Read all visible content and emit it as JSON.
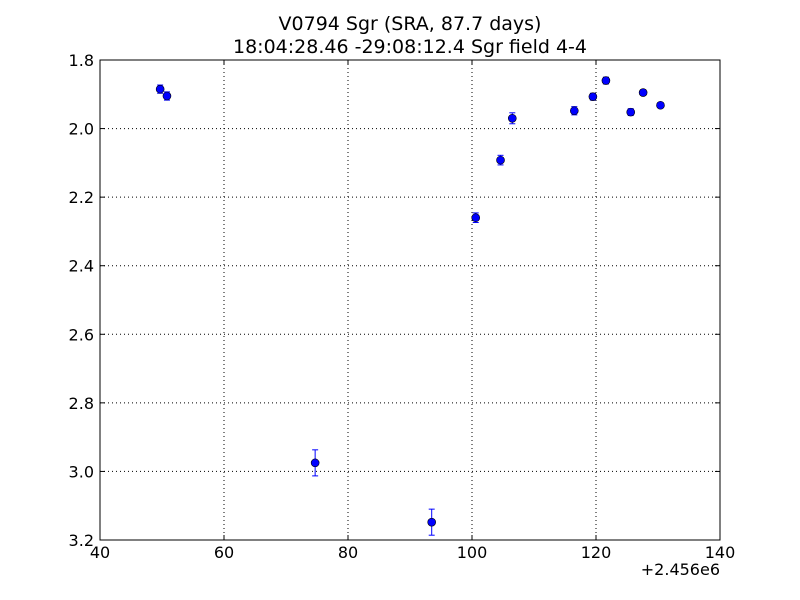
{
  "chart_data": {
    "type": "scatter",
    "title": "V0794 Sgr (SRA, 87.7 days)",
    "subtitle": "18:04:28.46 -29:08:12.4 Sgr field 4-4",
    "xlabel": "",
    "ylabel": "",
    "x_offset_label": "+2.456e6",
    "xlim": [
      40,
      140
    ],
    "ylim": [
      3.2,
      1.8
    ],
    "y_inverted": true,
    "grid": true,
    "x_ticks": [
      40,
      60,
      80,
      100,
      120,
      140
    ],
    "x_tick_labels": [
      "40",
      "60",
      "80",
      "100",
      "120",
      "140"
    ],
    "y_ticks": [
      1.8,
      2.0,
      2.2,
      2.4,
      2.6,
      2.8,
      3.0,
      3.2
    ],
    "y_tick_labels": [
      "1.8",
      "2.0",
      "2.2",
      "2.4",
      "2.6",
      "2.8",
      "3.0",
      "3.2"
    ],
    "marker_color": "#0000ff",
    "errorbar_color": "#0000ff",
    "points": [
      {
        "x": 49.7,
        "y": 1.885,
        "err": 0.012
      },
      {
        "x": 50.8,
        "y": 1.905,
        "err": 0.012
      },
      {
        "x": 74.7,
        "y": 2.975,
        "err": 0.038
      },
      {
        "x": 93.5,
        "y": 3.148,
        "err": 0.038
      },
      {
        "x": 100.6,
        "y": 2.26,
        "err": 0.014
      },
      {
        "x": 104.6,
        "y": 2.092,
        "err": 0.014
      },
      {
        "x": 106.5,
        "y": 1.97,
        "err": 0.016
      },
      {
        "x": 116.5,
        "y": 1.948,
        "err": 0.012
      },
      {
        "x": 119.5,
        "y": 1.907,
        "err": 0.01
      },
      {
        "x": 121.6,
        "y": 1.86,
        "err": 0.01
      },
      {
        "x": 125.6,
        "y": 1.952,
        "err": 0.01
      },
      {
        "x": 127.6,
        "y": 1.895,
        "err": 0.008
      },
      {
        "x": 130.4,
        "y": 1.932,
        "err": 0.008
      }
    ]
  }
}
